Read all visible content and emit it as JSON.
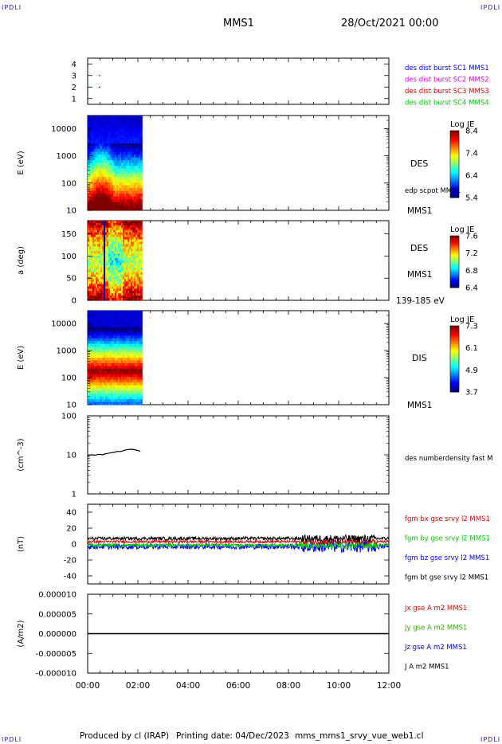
{
  "header": {
    "mission": "MMS1",
    "datetime": "28/Oct/2021 00:00"
  },
  "corner_label": "IPDLI",
  "footer": {
    "produced_by": "Produced by cl (IRAP)",
    "printing_date": "Printing date: 04/Dec/2023",
    "file_name": "mms_mms1_srvy_vue_web1.cl"
  },
  "colors": {
    "blue": "#0000ff",
    "magenta": "#dd00dd",
    "red": "#dd0000",
    "green": "#00cc00",
    "black": "#000000"
  },
  "chart_data": [
    {
      "type": "scatter",
      "panel": "burst-indicator",
      "yticks": [
        "1",
        "2",
        "3",
        "4"
      ],
      "ylim": [
        0.5,
        4.5
      ],
      "series": [
        {
          "name": "des dist burst SC1 MMS1",
          "color": "#0000ff",
          "x": [],
          "y": []
        },
        {
          "name": "des dist burst SC2 MMS2",
          "color": "#dd00dd",
          "x": [
            "00:15"
          ],
          "y": [
            3
          ]
        },
        {
          "name": "des dist burst SC3 MMS3",
          "color": "#dd0000",
          "x": [
            "00:15"
          ],
          "y": [
            2
          ]
        },
        {
          "name": "des dist burst SC4 MMS4",
          "color": "#00cc00",
          "x": [],
          "y": []
        }
      ]
    },
    {
      "type": "heatmap",
      "panel": "des-energy",
      "ylabel": "E (eV)",
      "yscale": "log",
      "yticks": [
        "10",
        "100",
        "1000",
        "10000"
      ],
      "ylim": [
        10,
        30000
      ],
      "data_extent": [
        "00:00",
        "02:10"
      ],
      "side_label": "DES",
      "side_label_2": "edp scpot MMS1",
      "side_label_3": "MMS1",
      "colorbar": {
        "title": "Log JE",
        "ticks": [
          "8.4",
          "7.4",
          "6.4",
          "5.4"
        ],
        "range": [
          5.4,
          8.4
        ]
      }
    },
    {
      "type": "heatmap",
      "panel": "des-pitch",
      "ylabel": "a (deg)",
      "yticks": [
        "0",
        "50",
        "100",
        "150"
      ],
      "ylim": [
        0,
        180
      ],
      "data_extent": [
        "00:00",
        "02:10"
      ],
      "side_label": "DES",
      "side_label_2": "MMS1",
      "side_label_3": "139-185 eV",
      "colorbar": {
        "title": "Log JE",
        "ticks": [
          "7.6",
          "7.2",
          "6.8",
          "6.4"
        ],
        "range": [
          6.4,
          7.6
        ]
      }
    },
    {
      "type": "heatmap",
      "panel": "dis-energy",
      "ylabel": "E (eV)",
      "yscale": "log",
      "yticks": [
        "10",
        "100",
        "1000",
        "10000"
      ],
      "ylim": [
        10,
        30000
      ],
      "data_extent": [
        "00:00",
        "02:10"
      ],
      "side_label": "DIS",
      "side_label_2": "MMS1",
      "colorbar": {
        "title": "Log JE",
        "ticks": [
          "7.3",
          "6.1",
          "4.9",
          "3.7"
        ],
        "range": [
          3.7,
          7.3
        ]
      }
    },
    {
      "type": "line",
      "panel": "density",
      "ylabel": "(cm^-3)",
      "yscale": "log",
      "yticks": [
        "1",
        "10",
        "100"
      ],
      "ylim": [
        1,
        100
      ],
      "series": [
        {
          "name": "des numberdensity fast M",
          "color": "#000000",
          "x": [
            0,
            0.1,
            0.2,
            0.3,
            0.4,
            0.5,
            0.6,
            0.7,
            0.8,
            0.9,
            1.0,
            1.1,
            1.2,
            1.3,
            1.4,
            1.5,
            1.6,
            1.7,
            1.8,
            1.9,
            2.0,
            2.1
          ],
          "y": [
            9.6,
            9.9,
            10.0,
            9.8,
            10.2,
            10.3,
            10.0,
            10.6,
            10.9,
            11.2,
            11.6,
            11.8,
            12.3,
            12.1,
            12.6,
            13.3,
            13.6,
            13.9,
            13.8,
            13.4,
            12.9,
            12.3
          ]
        }
      ]
    },
    {
      "type": "line",
      "panel": "magnetic-field",
      "ylabel": "(nT)",
      "yticks": [
        "-40",
        "-20",
        "0",
        "20",
        "40"
      ],
      "ylim": [
        -50,
        50
      ],
      "series": [
        {
          "name": "fgm bx gse srvy l2 MMS1",
          "color": "#dd0000",
          "level": 3.0,
          "noise": 1.5
        },
        {
          "name": "fgm by gse srvy l2 MMS1",
          "color": "#00cc00",
          "level": -1.5,
          "noise": 2.0
        },
        {
          "name": "fgm bz gse srvy l2 MMS1",
          "color": "#0000ff",
          "level": -3.0,
          "noise": 3.5
        },
        {
          "name": "fgm bt gse srvy l2 MMS1",
          "color": "#000000",
          "level": 7.0,
          "noise": 2.0
        }
      ]
    },
    {
      "type": "line",
      "panel": "current-density",
      "ylabel": "(A/m2)",
      "yticks": [
        "0.000010",
        "0.000005",
        "0.000000",
        "-0.000005",
        "-0.000010"
      ],
      "ylim": [
        -1e-05,
        1e-05
      ],
      "series": [
        {
          "name": "Jx gse A m2 MMS1",
          "color": "#dd0000",
          "level": 0
        },
        {
          "name": "Jy gse A m2 MMS1",
          "color": "#33aa00",
          "level": 0
        },
        {
          "name": "Jz gse A m2 MMS1",
          "color": "#0000ff",
          "level": 0
        },
        {
          "name": "J A m2 MMS1",
          "color": "#000000",
          "level": 0
        }
      ]
    }
  ],
  "time_axis": {
    "ticks": [
      "00:00",
      "02:00",
      "04:00",
      "06:00",
      "08:00",
      "10:00",
      "12:00"
    ],
    "range_hours": [
      0,
      12
    ]
  }
}
